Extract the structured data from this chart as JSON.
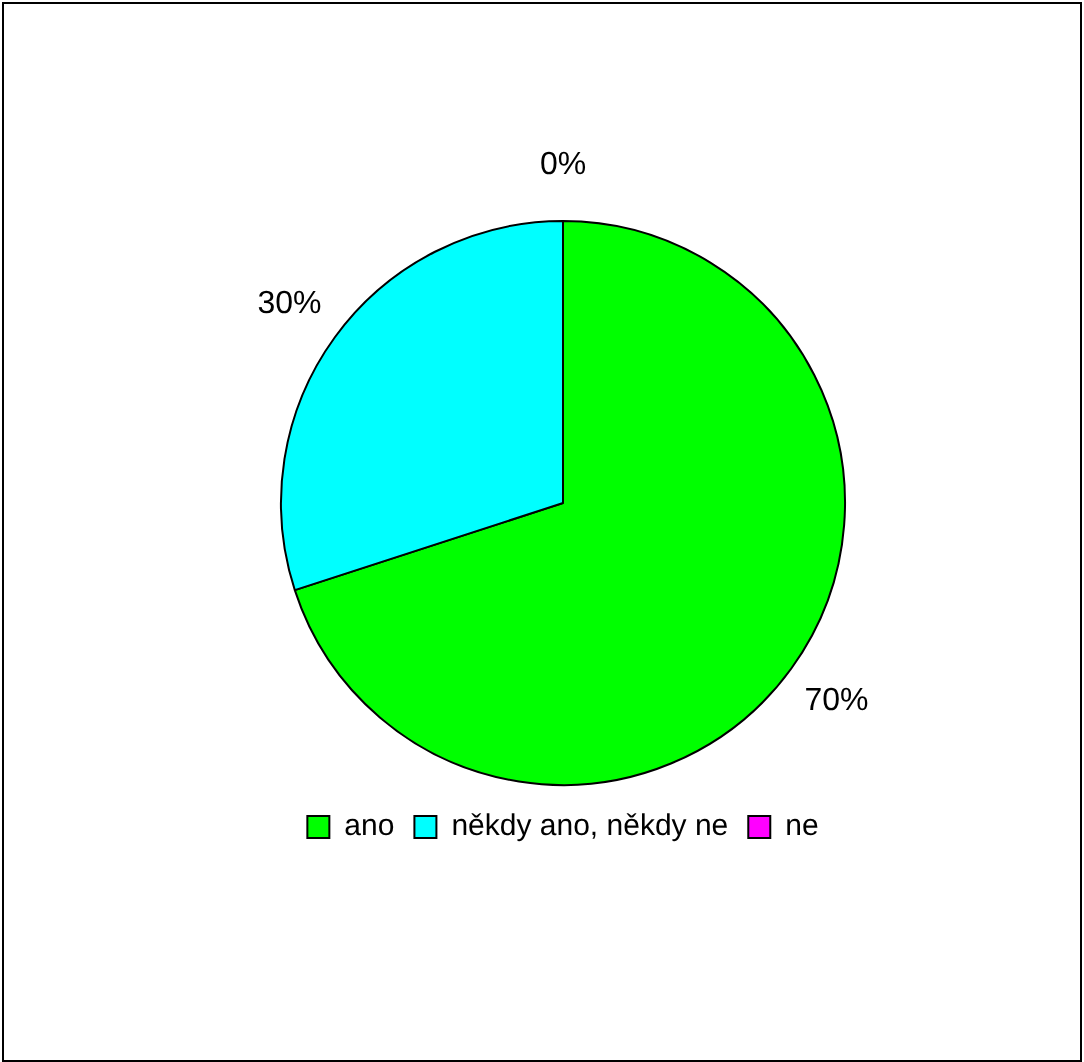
{
  "chart_data": {
    "type": "pie",
    "categories": [
      "ano",
      "někdy ano, někdy ne",
      "ne"
    ],
    "values": [
      70,
      30,
      0
    ],
    "value_labels": [
      "70%",
      "30%",
      "0%"
    ],
    "colors": [
      "#00ff00",
      "#00ffff",
      "#ff00ff"
    ],
    "legend": "bottom"
  }
}
